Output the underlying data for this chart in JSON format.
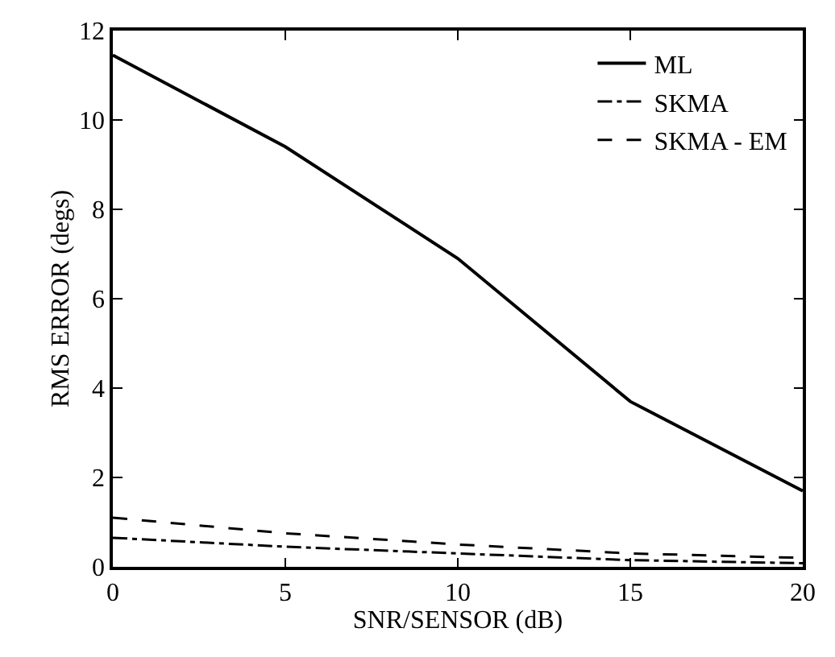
{
  "chart_data": {
    "type": "line",
    "xlabel": "SNR/SENSOR (dB)",
    "ylabel": "RMS ERROR (degs)",
    "x": [
      0,
      5,
      10,
      15,
      20
    ],
    "series": [
      {
        "name": "ML",
        "color": "#000000",
        "line_style": "solid",
        "values": [
          11.45,
          9.4,
          6.9,
          3.7,
          1.7
        ]
      },
      {
        "name": "SKMA",
        "color": "#000000",
        "line_style": "dashdot",
        "values": [
          0.65,
          0.45,
          0.3,
          0.15,
          0.08
        ]
      },
      {
        "name": "SKMA - EM",
        "color": "#000000",
        "line_style": "dashed",
        "values": [
          1.1,
          0.75,
          0.5,
          0.3,
          0.2
        ]
      }
    ],
    "xlim": [
      0,
      20
    ],
    "xticks": [
      0,
      5,
      10,
      15,
      20
    ],
    "ylim": [
      0,
      12
    ],
    "yticks": [
      0,
      2,
      4,
      6,
      8,
      10,
      12
    ],
    "grid": false,
    "legend": "top right",
    "marker": "none"
  }
}
